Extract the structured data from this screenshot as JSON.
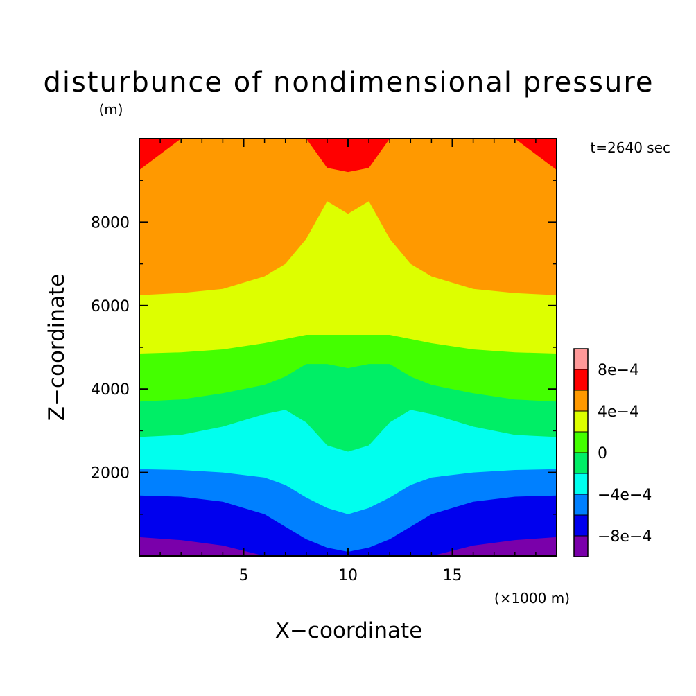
{
  "chart_data": {
    "type": "heatmap",
    "title": "disturbunce of nondimensional pressure",
    "y_unit_label": "(m)",
    "time_label": "t=2640 sec",
    "xlabel": "X−coordinate",
    "ylabel": "Z−coordinate",
    "x_unit_label": "(×1000 m)",
    "xlim": [
      0,
      20
    ],
    "ylim": [
      0,
      10000
    ],
    "x_ticks": [
      {
        "value": 5,
        "label": "5"
      },
      {
        "value": 10,
        "label": "10"
      },
      {
        "value": 15,
        "label": "15"
      }
    ],
    "y_ticks": [
      {
        "value": 2000,
        "label": "2000"
      },
      {
        "value": 4000,
        "label": "4000"
      },
      {
        "value": 6000,
        "label": "6000"
      },
      {
        "value": 8000,
        "label": "8000"
      }
    ],
    "colorbar": {
      "levels": [
        -0.001,
        -0.0008,
        -0.0006,
        -0.0004,
        -0.0002,
        0,
        0.0002,
        0.0004,
        0.0006,
        0.0008,
        0.001
      ],
      "colors": [
        "#7a00aa",
        "#0000ee",
        "#0080ff",
        "#00ffee",
        "#00ee66",
        "#44ff00",
        "#ddff00",
        "#ff9900",
        "#ff0000",
        "#ff9999"
      ],
      "tick_labels": [
        {
          "value": -0.0008,
          "label": "−8e−4"
        },
        {
          "value": -0.0004,
          "label": "−4e−4"
        },
        {
          "value": 0,
          "label": "0"
        },
        {
          "value": 0.0004,
          "label": "4e−4"
        },
        {
          "value": 0.0008,
          "label": "8e−4"
        }
      ]
    },
    "field_description_free": true,
    "contour_boundaries": {
      "comment_free": true,
      "x": [
        0,
        2,
        4,
        6,
        7,
        8,
        9,
        10,
        11,
        12,
        13,
        14,
        16,
        18,
        20
      ],
      "levels": [
        {
          "value": -0.0008,
          "z": [
            450,
            380,
            250,
            0,
            0,
            0,
            0,
            0,
            0,
            0,
            0,
            0,
            250,
            380,
            450
          ]
        },
        {
          "value": -0.0006,
          "z": [
            1450,
            1420,
            1300,
            1000,
            700,
            400,
            200,
            100,
            200,
            400,
            700,
            1000,
            1300,
            1420,
            1450
          ]
        },
        {
          "value": -0.0004,
          "z": [
            2080,
            2060,
            2000,
            1880,
            1700,
            1400,
            1150,
            1000,
            1150,
            1400,
            1700,
            1880,
            2000,
            2060,
            2080
          ]
        },
        {
          "value": -0.0002,
          "z": [
            2850,
            2900,
            3100,
            3400,
            3500,
            3200,
            2650,
            2500,
            2650,
            3200,
            3500,
            3400,
            3100,
            2900,
            2850
          ]
        },
        {
          "value": 0,
          "z": [
            3700,
            3750,
            3900,
            4100,
            4300,
            4600,
            4600,
            4500,
            4600,
            4600,
            4300,
            4100,
            3900,
            3750,
            3700
          ]
        },
        {
          "value": 0.0002,
          "z": [
            4850,
            4880,
            4950,
            5100,
            5200,
            5300,
            5300,
            5300,
            5300,
            5300,
            5200,
            5100,
            4950,
            4880,
            4850
          ]
        },
        {
          "value": 0.0004,
          "z": [
            6250,
            6300,
            6400,
            6700,
            7000,
            7600,
            8500,
            8200,
            8500,
            7600,
            7000,
            6700,
            6400,
            6300,
            6250
          ]
        },
        {
          "value": 0.0006,
          "z": [
            9250,
            10000,
            10000,
            10000,
            10000,
            10000,
            9300,
            9200,
            9300,
            10000,
            10000,
            10000,
            10000,
            10000,
            9250
          ]
        }
      ]
    }
  }
}
